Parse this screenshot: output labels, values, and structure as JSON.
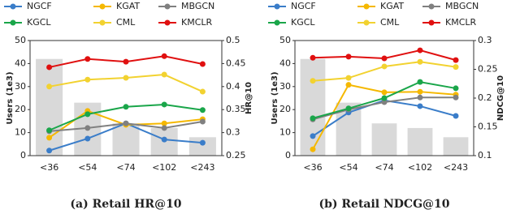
{
  "chart_data": [
    {
      "type": "combo",
      "caption": "(a) Retail HR@10",
      "ylabel": "Users (1e3)",
      "y2label": "HR@10",
      "categories": [
        "<36",
        "<54",
        "<74",
        "<102",
        "<243"
      ],
      "values": [
        42,
        23,
        14,
        12,
        8
      ],
      "bar_color": "#d9d9d9",
      "ylim": [
        0,
        50
      ],
      "yticks": [
        0,
        10,
        20,
        30,
        40,
        50
      ],
      "y2lim": [
        0.25,
        0.5
      ],
      "y2ticks": [
        0.25,
        0.3,
        0.35,
        0.4,
        0.45,
        0.5
      ],
      "series": [
        {
          "name": "NGCF",
          "color": "#3a7dc9",
          "axis": "y2",
          "values": [
            0.261,
            0.287,
            0.32,
            0.285,
            0.278
          ]
        },
        {
          "name": "KGAT",
          "color": "#f5b800",
          "axis": "y2",
          "values": [
            0.289,
            0.347,
            0.317,
            0.32,
            0.329
          ]
        },
        {
          "name": "MBGCN",
          "color": "#808080",
          "axis": "y2",
          "values": [
            0.303,
            0.31,
            0.32,
            0.31,
            0.324
          ]
        },
        {
          "name": "KGCL",
          "color": "#1aa64a",
          "axis": "y2",
          "values": [
            0.305,
            0.34,
            0.356,
            0.361,
            0.349
          ]
        },
        {
          "name": "CML",
          "color": "#f2d230",
          "axis": "y2",
          "values": [
            0.4,
            0.415,
            0.419,
            0.426,
            0.389
          ]
        },
        {
          "name": "KMCLR",
          "color": "#e01010",
          "axis": "y2",
          "values": [
            0.442,
            0.46,
            0.454,
            0.466,
            0.449
          ]
        }
      ]
    },
    {
      "type": "combo",
      "caption": "(b) Retail NDCG@10",
      "ylabel": "Users (1e3)",
      "y2label": "NDCG@10",
      "categories": [
        "<36",
        "<54",
        "<74",
        "<102",
        "<243"
      ],
      "values": [
        42,
        23,
        14,
        12,
        8
      ],
      "bar_color": "#d9d9d9",
      "ylim": [
        0,
        50
      ],
      "yticks": [
        0,
        10,
        20,
        30,
        40,
        50
      ],
      "y2lim": [
        0.1,
        0.3
      ],
      "y2ticks": [
        0.1,
        0.15,
        0.2,
        0.25,
        0.3
      ],
      "series": [
        {
          "name": "NGCF",
          "color": "#3a7dc9",
          "axis": "y2",
          "values": [
            0.134,
            0.175,
            0.196,
            0.186,
            0.169
          ]
        },
        {
          "name": "KGAT",
          "color": "#f5b800",
          "axis": "y2",
          "values": [
            0.111,
            0.223,
            0.21,
            0.211,
            0.206
          ]
        },
        {
          "name": "MBGCN",
          "color": "#808080",
          "axis": "y2",
          "values": [
            0.163,
            0.18,
            0.193,
            0.201,
            0.201
          ]
        },
        {
          "name": "KGCL",
          "color": "#1aa64a",
          "axis": "y2",
          "values": [
            0.165,
            0.182,
            0.2,
            0.228,
            0.217
          ]
        },
        {
          "name": "CML",
          "color": "#f2d230",
          "axis": "y2",
          "values": [
            0.23,
            0.235,
            0.255,
            0.263,
            0.254
          ]
        },
        {
          "name": "KMCLR",
          "color": "#e01010",
          "axis": "y2",
          "values": [
            0.27,
            0.272,
            0.269,
            0.283,
            0.266
          ]
        }
      ]
    }
  ]
}
